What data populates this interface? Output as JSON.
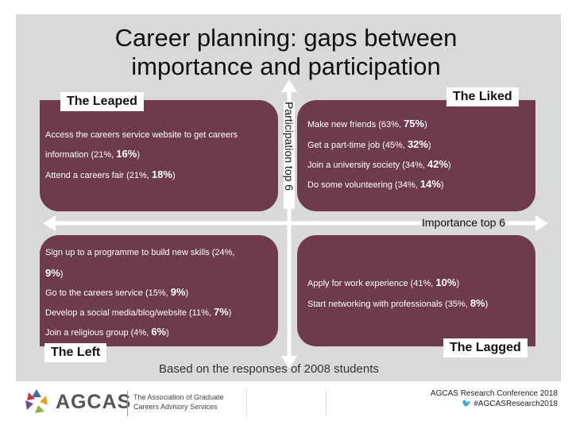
{
  "title_line1": "Career planning: gaps between",
  "title_line2": "importance and participation",
  "axes": {
    "vertical_label": "Participation top 6",
    "horizontal_label": "Importance top 6"
  },
  "quadrants": {
    "top_left": {
      "label": "The Leaped",
      "items": [
        {
          "text": "Access the careers service website to get careers",
          "value": ""
        },
        {
          "text": "information (21%,",
          "value": "16%",
          "close": ")"
        },
        {
          "text": "Attend a careers fair (21%,",
          "value": "18%",
          "close": ")"
        }
      ]
    },
    "top_right": {
      "label": "The Liked",
      "items": [
        {
          "text": "Make new friends (63%,",
          "value": "75%",
          "close": ")"
        },
        {
          "text": "Get a part-time job (45%,",
          "value": "32%",
          "close": ")"
        },
        {
          "text": "Join a university society (34%,",
          "value": "42%",
          "close": ")"
        },
        {
          "text": "Do some volunteering (34%,",
          "value": "14%",
          "close": ")"
        }
      ]
    },
    "bottom_left": {
      "label": "The Left",
      "items": [
        {
          "text": "Sign up to a programme to build new skills (24%,",
          "value": "",
          "close": ""
        },
        {
          "text": "",
          "value": "9%",
          "close": ")"
        },
        {
          "text": "Go to the careers service (15%,",
          "value": "9%",
          "close": ")"
        },
        {
          "text": "Develop a social media/blog/website (11%,",
          "value": "7%",
          "close": ")"
        },
        {
          "text": "Join a religious group (4%,",
          "value": "6%",
          "close": ")"
        }
      ]
    },
    "bottom_right": {
      "label": "The Lagged",
      "items": [
        {
          "text": "Apply for work experience (41%,",
          "value": "10%",
          "close": ")"
        },
        {
          "text": "Start networking with professionals (35%,",
          "value": "8%",
          "close": ")"
        }
      ]
    }
  },
  "caption": "Based on the responses of 2008 students",
  "footer": {
    "logo_text": "AGCAS",
    "org_line1": "The Association of Graduate",
    "org_line2": "Careers Advisory Services",
    "conference": "AGCAS Research Conference 2018",
    "hashtag": "#AGCASResearch2018"
  },
  "colors": {
    "quadrant": "#6e3a4d",
    "background": "#d9d9d9"
  }
}
